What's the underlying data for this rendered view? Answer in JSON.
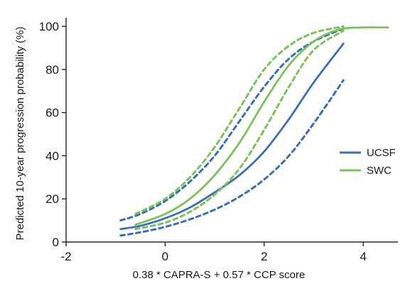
{
  "chart_data": {
    "type": "line",
    "title": "",
    "xlabel": "0.38 * CAPRA-S + 0.57 * CCP score",
    "ylabel": "Predicted 10-year progression probability (%)",
    "xlim": [
      -2,
      4.7
    ],
    "ylim": [
      0,
      104
    ],
    "xticks": [
      -2,
      0,
      2,
      4
    ],
    "yticks": [
      0,
      20,
      40,
      60,
      80,
      100
    ],
    "grid": false,
    "legend_position": "right",
    "colors": {
      "UCSF": "#3a6fb7",
      "SWC": "#7cc25a"
    },
    "series": [
      {
        "name": "UCSF",
        "role": "estimate",
        "color": "#3a6fb7",
        "style": "solid",
        "x": [
          -0.9,
          -0.5,
          0,
          0.5,
          1,
          1.5,
          2,
          2.5,
          3,
          3.6
        ],
        "y": [
          6,
          7.5,
          11,
          16,
          23,
          31,
          42,
          57,
          74,
          92
        ]
      },
      {
        "name": "UCSF",
        "role": "ci-upper",
        "color": "#3a6fb7",
        "style": "dashed",
        "x": [
          -0.9,
          -0.5,
          0,
          0.5,
          1,
          1.5,
          2,
          2.5,
          3,
          3.6
        ],
        "y": [
          10,
          13,
          19,
          28,
          40,
          56,
          72,
          85,
          93,
          99
        ]
      },
      {
        "name": "UCSF",
        "role": "ci-lower",
        "color": "#3a6fb7",
        "style": "dashed",
        "x": [
          -0.9,
          -0.5,
          0,
          0.5,
          1,
          1.5,
          2,
          2.5,
          3,
          3.6
        ],
        "y": [
          3,
          4.5,
          7,
          10.5,
          15,
          21,
          29,
          40,
          55,
          75
        ]
      },
      {
        "name": "SWC",
        "role": "estimate",
        "color": "#7cc25a",
        "style": "solid",
        "x": [
          -0.6,
          0,
          0.5,
          1,
          1.5,
          2,
          2.5,
          3,
          3.5,
          4,
          4.5
        ],
        "y": [
          8,
          13,
          20,
          31,
          46,
          65,
          82,
          93,
          98.5,
          99.5,
          99.5
        ]
      },
      {
        "name": "SWC",
        "role": "ci-upper",
        "color": "#7cc25a",
        "style": "dashed",
        "x": [
          -0.6,
          0,
          0.5,
          1,
          1.5,
          2,
          2.5,
          3,
          3.6
        ],
        "y": [
          13,
          20,
          30,
          44,
          62,
          80,
          91,
          97,
          100
        ]
      },
      {
        "name": "SWC",
        "role": "ci-lower",
        "color": "#7cc25a",
        "style": "dashed",
        "x": [
          -0.6,
          0,
          0.5,
          1,
          1.5,
          2,
          2.5,
          3,
          3.6
        ],
        "y": [
          6,
          9,
          14,
          22,
          34,
          52,
          72,
          89,
          98
        ]
      }
    ],
    "legend": [
      {
        "label": "UCSF",
        "color": "#3a6fb7"
      },
      {
        "label": "SWC",
        "color": "#7cc25a"
      }
    ]
  }
}
